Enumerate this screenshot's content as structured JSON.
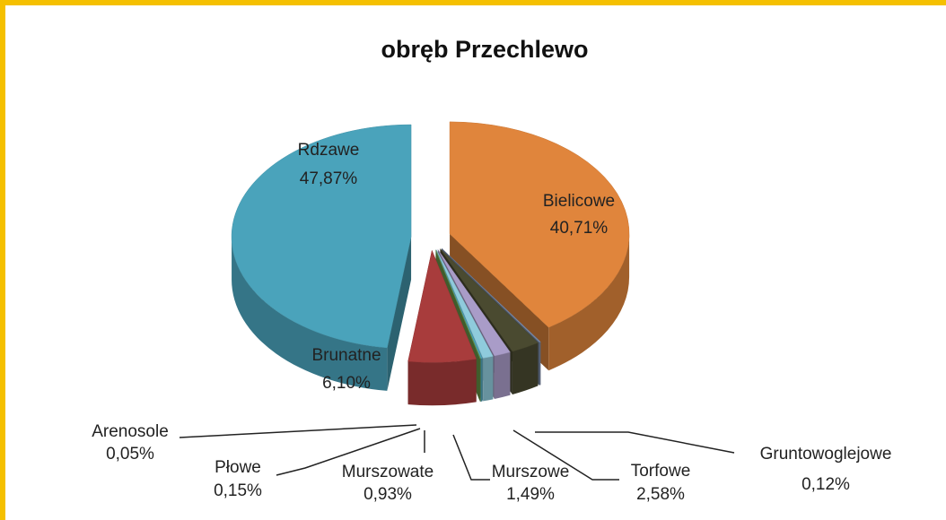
{
  "chart_data": {
    "type": "pie",
    "title": "obręb Przechlewo",
    "categories": [
      "Bielicowe",
      "Gruntowoglejowe",
      "Torfowe",
      "Murszowe",
      "Murszowate",
      "Płowe",
      "Arenosole",
      "Brunatne",
      "Rdzawe"
    ],
    "values": [
      40.71,
      0.12,
      2.58,
      1.49,
      0.93,
      0.15,
      0.05,
      6.1,
      47.87
    ],
    "value_labels": [
      "40,71%",
      "0,12%",
      "2,58%",
      "1,49%",
      "0,93%",
      "0,15%",
      "0,05%",
      "6,10%",
      "47,87%"
    ],
    "colors": [
      "#e0853c",
      "#7a8aa6",
      "#4a4a30",
      "#a99cc8",
      "#8fcbdc",
      "#4ea3ba",
      "#6a9a4a",
      "#a83c3c",
      "#4aa3bb"
    ]
  }
}
